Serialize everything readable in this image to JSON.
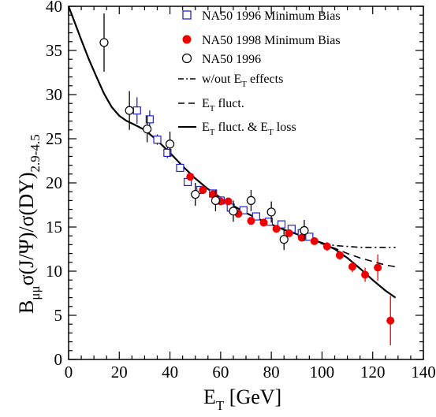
{
  "chart_data": {
    "type": "scatter",
    "xlabel": "E_T [GeV]",
    "ylabel": "B_μμ σ(J/Ψ)/σ(DY)_2.9-4.5",
    "xlim": [
      0,
      140
    ],
    "ylim": [
      0,
      40
    ],
    "xticks": [
      "0",
      "20",
      "40",
      "60",
      "80",
      "100",
      "120",
      "140"
    ],
    "yticks": [
      "0",
      "5",
      "10",
      "15",
      "20",
      "25",
      "30",
      "35",
      "40"
    ],
    "grid": false,
    "legend_position": "top-right",
    "series": [
      {
        "name": "NA50 1996 Minimum Bias",
        "marker": "open-square",
        "color": "#2222cc",
        "points": [
          {
            "x": 27,
            "y": 28.2,
            "err": 1.5
          },
          {
            "x": 32,
            "y": 27.2,
            "err": 1.0
          },
          {
            "x": 35,
            "y": 24.9,
            "err": 0.6
          },
          {
            "x": 39,
            "y": 23.4,
            "err": 0.6
          },
          {
            "x": 44,
            "y": 21.7,
            "err": 0.4
          },
          {
            "x": 47,
            "y": 20.1,
            "err": 0.4
          },
          {
            "x": 52,
            "y": 19.2,
            "err": 0.4
          },
          {
            "x": 57,
            "y": 18.8,
            "err": 0.4
          },
          {
            "x": 60,
            "y": 18.0,
            "err": 0.4
          },
          {
            "x": 64,
            "y": 17.2,
            "err": 0.4
          },
          {
            "x": 69,
            "y": 16.9,
            "err": 0.4
          },
          {
            "x": 74,
            "y": 16.2,
            "err": 0.4
          },
          {
            "x": 79,
            "y": 15.6,
            "err": 0.4
          },
          {
            "x": 84,
            "y": 15.3,
            "err": 0.4
          },
          {
            "x": 88,
            "y": 14.8,
            "err": 0.4
          },
          {
            "x": 92,
            "y": 14.3,
            "err": 0.4
          },
          {
            "x": 95,
            "y": 13.9,
            "err": 0.4
          }
        ]
      },
      {
        "name": "NA50 1998 Minimum Bias",
        "marker": "filled-circle",
        "color": "#ee0000",
        "points": [
          {
            "x": 48,
            "y": 20.7,
            "err": 0.4
          },
          {
            "x": 53,
            "y": 19.2,
            "err": 0.4
          },
          {
            "x": 57,
            "y": 18.7,
            "err": 0.4
          },
          {
            "x": 60,
            "y": 17.9,
            "err": 0.4
          },
          {
            "x": 63,
            "y": 17.9,
            "err": 0.4
          },
          {
            "x": 67,
            "y": 16.5,
            "err": 0.4
          },
          {
            "x": 72,
            "y": 15.7,
            "err": 0.4
          },
          {
            "x": 77,
            "y": 15.5,
            "err": 0.4
          },
          {
            "x": 82,
            "y": 14.8,
            "err": 0.4
          },
          {
            "x": 87,
            "y": 14.3,
            "err": 0.4
          },
          {
            "x": 92,
            "y": 13.8,
            "err": 0.4
          },
          {
            "x": 97,
            "y": 13.4,
            "err": 0.4
          },
          {
            "x": 102,
            "y": 12.8,
            "err": 0.5
          },
          {
            "x": 107,
            "y": 11.8,
            "err": 0.5
          },
          {
            "x": 112,
            "y": 10.5,
            "err": 0.6
          },
          {
            "x": 117,
            "y": 9.6,
            "err": 0.8
          },
          {
            "x": 122,
            "y": 10.4,
            "err": 1.5
          },
          {
            "x": 127,
            "y": 4.4,
            "err": 2.8
          }
        ]
      },
      {
        "name": "NA50 1996",
        "marker": "open-circle",
        "color": "#000000",
        "points": [
          {
            "x": 14,
            "y": 35.9,
            "err": 3.3
          },
          {
            "x": 24,
            "y": 28.2,
            "err": 2.2
          },
          {
            "x": 31,
            "y": 26.1,
            "err": 1.5
          },
          {
            "x": 40,
            "y": 24.4,
            "err": 1.4
          },
          {
            "x": 50,
            "y": 18.7,
            "err": 1.3
          },
          {
            "x": 58,
            "y": 18.0,
            "err": 1.2
          },
          {
            "x": 65,
            "y": 16.8,
            "err": 1.2
          },
          {
            "x": 72,
            "y": 18.0,
            "err": 1.2
          },
          {
            "x": 80,
            "y": 16.7,
            "err": 1.2
          },
          {
            "x": 85,
            "y": 13.6,
            "err": 1.2
          },
          {
            "x": 93,
            "y": 14.6,
            "err": 1.2
          }
        ]
      }
    ],
    "curves": [
      {
        "name": "w/out E_T effects",
        "dash": "8 4 2 4",
        "points": [
          [
            95,
            13.6
          ],
          [
            100,
            13.2
          ],
          [
            105,
            12.9
          ],
          [
            110,
            12.8
          ],
          [
            115,
            12.7
          ],
          [
            120,
            12.7
          ],
          [
            125,
            12.7
          ],
          [
            129,
            12.7
          ]
        ]
      },
      {
        "name": "E_T fluct.",
        "dash": "9 6",
        "points": [
          [
            95,
            13.6
          ],
          [
            100,
            13.1
          ],
          [
            105,
            12.6
          ],
          [
            110,
            12.0
          ],
          [
            115,
            11.5
          ],
          [
            120,
            11.1
          ],
          [
            125,
            10.7
          ],
          [
            129,
            10.5
          ]
        ]
      },
      {
        "name": "E_T fluct. & E_T loss",
        "dash": "",
        "points": [
          [
            0,
            40
          ],
          [
            2,
            38.5
          ],
          [
            5,
            36.2
          ],
          [
            8,
            34.0
          ],
          [
            11,
            32.0
          ],
          [
            14,
            30.1
          ],
          [
            17,
            28.6
          ],
          [
            20,
            27.6
          ],
          [
            23,
            27.0
          ],
          [
            26,
            26.6
          ],
          [
            30,
            26.0
          ],
          [
            35,
            24.8
          ],
          [
            40,
            23.4
          ],
          [
            45,
            21.9
          ],
          [
            50,
            20.5
          ],
          [
            55,
            19.3
          ],
          [
            60,
            18.3
          ],
          [
            65,
            17.4
          ],
          [
            70,
            16.6
          ],
          [
            75,
            15.9
          ],
          [
            80,
            15.3
          ],
          [
            85,
            14.7
          ],
          [
            90,
            14.2
          ],
          [
            95,
            13.7
          ],
          [
            100,
            13.2
          ],
          [
            105,
            12.5
          ],
          [
            110,
            11.5
          ],
          [
            115,
            10.3
          ],
          [
            120,
            9.0
          ],
          [
            125,
            7.8
          ],
          [
            129,
            7.0
          ]
        ]
      }
    ]
  },
  "legend": {
    "items": [
      {
        "text": "NA50 1996 Minimum Bias"
      },
      {
        "text": "NA50 1998 Minimum Bias"
      },
      {
        "text": "NA50 1996"
      },
      {
        "pre": "w/out E",
        "sub": "T",
        "post": " effects"
      },
      {
        "pre": "E",
        "sub": "T",
        "post": " fluct."
      },
      {
        "pre": "E",
        "sub": "T",
        "post": " fluct. & E",
        "sub2": "T",
        "post2": " loss"
      }
    ]
  },
  "axis_titles": {
    "x": {
      "main": "E",
      "sub": "T",
      "rest": " [GeV]"
    },
    "y": {
      "b": "B",
      "b_sub": "μμ",
      "expr": "σ(J/Ψ)/σ(DY)",
      "range_sub": "2.9-4.5"
    }
  }
}
